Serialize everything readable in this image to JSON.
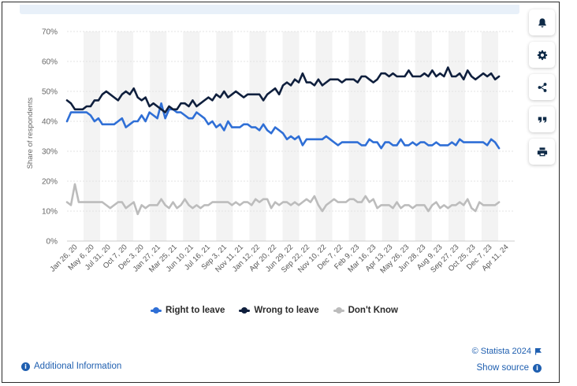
{
  "chart_data": {
    "type": "line",
    "ylabel": "Share of respondents",
    "y_unit": "%",
    "ylim": [
      0,
      70
    ],
    "y_ticks": [
      0,
      10,
      20,
      30,
      40,
      50,
      60,
      70
    ],
    "grid": "horizontal",
    "legend_position": "bottom-center",
    "x_tick_labels": [
      "Jan 26, 20",
      "May 6, 20",
      "Jul 31, 20",
      "Oct 7, 20",
      "Dec 3, 20",
      "Jan 27, 21",
      "Mar 25, 21",
      "Jun 10, 21",
      "Jul 16, 21",
      "Sep 3, 21",
      "Nov 11, 21",
      "Jan 12, 22",
      "Apr 20, 22",
      "Jun 29, 22",
      "Sep 22, 22",
      "Nov 10, 22",
      "Dec 7, 22",
      "Feb 9, 23",
      "Mar 16, 23",
      "Apr 13, 23",
      "May 26, 23",
      "Jun 28, 23",
      "Aug 9, 23",
      "Sep 27, 23",
      "Oct 25, 23",
      "Dec 7, 23",
      "Apr 11, 24"
    ],
    "point_count": 115,
    "series": [
      {
        "name": "Right to leave",
        "color": "#2f6fd6",
        "values": [
          40,
          43,
          43,
          43,
          43,
          43,
          42,
          40,
          41,
          39,
          39,
          39,
          39,
          40,
          41,
          38,
          39,
          40,
          40,
          42,
          40,
          43,
          42,
          41,
          46,
          41,
          44,
          44,
          43,
          43,
          42,
          41,
          41,
          43,
          42,
          41,
          39,
          40,
          38,
          39,
          37,
          40,
          38,
          38,
          38,
          39,
          39,
          38,
          38,
          37,
          39,
          37,
          36,
          38,
          37,
          36,
          34,
          35,
          34,
          35,
          32,
          34,
          34,
          34,
          34,
          34,
          35,
          34,
          33,
          32,
          33,
          33,
          33,
          33,
          33,
          32,
          32,
          34,
          33,
          33,
          31,
          33,
          33,
          32,
          32,
          34,
          32,
          32,
          33,
          32,
          33,
          33,
          32,
          32,
          33,
          32,
          32,
          32,
          33,
          32,
          34,
          33,
          33,
          33,
          33,
          33,
          33,
          32,
          34,
          33,
          31
        ]
      },
      {
        "name": "Wrong to leave",
        "color": "#0f1f3d",
        "values": [
          47,
          46,
          44,
          44,
          44,
          45,
          45,
          47,
          47,
          49,
          50,
          49,
          48,
          47,
          49,
          50,
          49,
          51,
          48,
          47,
          48,
          45,
          46,
          45,
          44,
          43,
          45,
          44,
          44,
          46,
          46,
          45,
          47,
          45,
          46,
          47,
          48,
          47,
          49,
          48,
          50,
          48,
          49,
          50,
          49,
          48,
          49,
          49,
          49,
          49,
          47,
          49,
          50,
          51,
          49,
          52,
          53,
          52,
          54,
          53,
          56,
          53,
          53,
          52,
          54,
          52,
          53,
          54,
          54,
          54,
          53,
          54,
          54,
          54,
          53,
          55,
          55,
          54,
          53,
          54,
          56,
          56,
          55,
          56,
          55,
          55,
          55,
          57,
          55,
          55,
          55,
          56,
          55,
          57,
          55,
          56,
          55,
          58,
          55,
          55,
          56,
          54,
          57,
          55,
          54,
          55,
          56,
          55,
          56,
          54,
          55
        ]
      },
      {
        "name": "Don't Know",
        "color": "#bcbcbc",
        "values": [
          13,
          12,
          19,
          13,
          13,
          13,
          13,
          13,
          13,
          13,
          12,
          11,
          12,
          13,
          13,
          11,
          12,
          13,
          9,
          12,
          11,
          12,
          12,
          12,
          14,
          12,
          11,
          13,
          11,
          12,
          14,
          12,
          11,
          12,
          11,
          12,
          12,
          13,
          13,
          13,
          13,
          13,
          12,
          13,
          12,
          13,
          13,
          12,
          14,
          13,
          14,
          14,
          11,
          13,
          12,
          13,
          13,
          12,
          13,
          12,
          13,
          14,
          13,
          15,
          12,
          10,
          12,
          13,
          14,
          13,
          13,
          13,
          14,
          14,
          13,
          13,
          15,
          13,
          14,
          11,
          12,
          12,
          12,
          11,
          13,
          11,
          12,
          12,
          11,
          12,
          12,
          12,
          10,
          12,
          13,
          11,
          12,
          11,
          12,
          12,
          13,
          12,
          14,
          11,
          10,
          13,
          12,
          12,
          12,
          12,
          13
        ]
      }
    ]
  },
  "legend": {
    "items": [
      {
        "label": "Right to leave",
        "color": "#2f6fd6"
      },
      {
        "label": "Wrong to leave",
        "color": "#0f1f3d"
      },
      {
        "label": "Don't Know",
        "color": "#bcbcbc"
      }
    ]
  },
  "footer": {
    "info_icon": "info-icon",
    "additional_info": "Additional Information",
    "credit": "© Statista 2024",
    "show_source": "Show source"
  },
  "sidebar": {
    "icons": [
      "bell-icon",
      "gear-icon",
      "share-icon",
      "quote-icon",
      "print-icon"
    ]
  }
}
